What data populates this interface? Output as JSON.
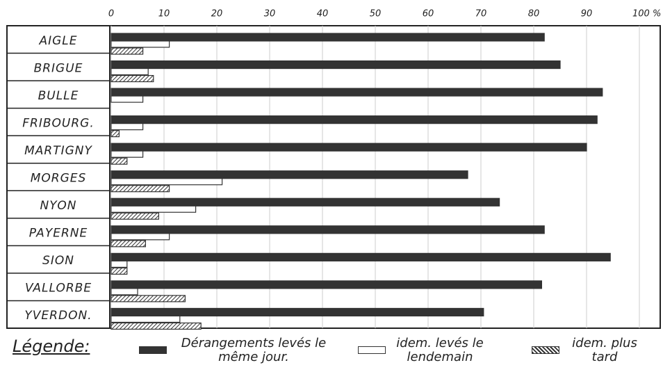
{
  "chart_data": {
    "type": "bar",
    "orientation": "horizontal",
    "categories": [
      "AIGLE",
      "BRIGUE",
      "BULLE",
      "FRIBOURG.",
      "MARTIGNY",
      "MORGES",
      "NYON",
      "PAYERNE",
      "SION",
      "VALLORBE",
      "YVERDON."
    ],
    "series": [
      {
        "name": "Dérangements levés le même jour.",
        "color": "#333333",
        "values": [
          82,
          85,
          93,
          92,
          90,
          67.5,
          73.5,
          82,
          94.5,
          81.5,
          70.5
        ]
      },
      {
        "name": "idem. levés le lendemain",
        "color": "#ffffff",
        "values": [
          11,
          7,
          6,
          6,
          6,
          21,
          16,
          11,
          3,
          5,
          13
        ]
      },
      {
        "name": "idem. plus tard",
        "color": "#555555",
        "hatch": true,
        "values": [
          6,
          8,
          0,
          1.5,
          3,
          11,
          9,
          6.5,
          3,
          14,
          17
        ]
      }
    ],
    "xlim": [
      0,
      100
    ],
    "xticks": [
      0,
      10,
      20,
      30,
      40,
      50,
      60,
      70,
      80,
      90,
      {
        "value": 100,
        "label": "100 %"
      }
    ],
    "grid": true,
    "legend_title": "Légende:"
  }
}
